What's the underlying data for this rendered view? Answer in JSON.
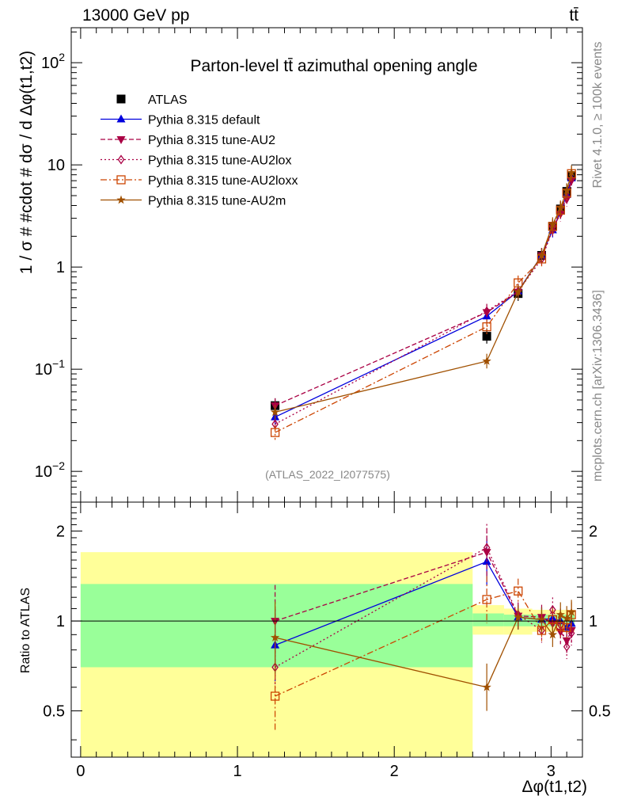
{
  "header": {
    "left": "13000 GeV pp",
    "right": "tt̄"
  },
  "side_labels": {
    "rivet": "Rivet 4.1.0, ≥ 100k events",
    "mcplots": "mcplots.cern.ch [arXiv:1306.3436]"
  },
  "watermark": "(ATLAS_2022_I2077575)",
  "chart_data": [
    {
      "type": "scatter",
      "panel": "main",
      "title": "Parton-level tt̄ azimuthal opening angle",
      "ylabel": "1 / σ # #cdot # dσ / d Δφ(t1,t2)",
      "yscale": "log",
      "ylim": [
        0.005,
        220
      ],
      "xlim": [
        -0.06,
        3.2
      ],
      "xtick_labels": [
        "0",
        "1",
        "2",
        "3"
      ],
      "ytick_labels": [
        "10^-2",
        "10^-1",
        "1",
        "10",
        "10^2"
      ],
      "legend_position": "top-left",
      "x": [
        1.24,
        2.59,
        2.79,
        2.94,
        3.01,
        3.06,
        3.1,
        3.13
      ],
      "series": [
        {
          "name": "ATLAS",
          "color": "#000000",
          "marker": "square-filled",
          "line": "none",
          "values": [
            0.044,
            0.21,
            0.55,
            1.3,
            2.5,
            3.7,
            5.5,
            7.8
          ]
        },
        {
          "name": "Pythia 8.315 default",
          "color": "#0000dd",
          "marker": "triangle-up",
          "line": "solid",
          "values": [
            0.034,
            0.33,
            0.58,
            1.3,
            2.3,
            3.5,
            5.1,
            7.4
          ]
        },
        {
          "name": "Pythia 8.315 tune-AU2",
          "color": "#aa0044",
          "marker": "triangle-down",
          "line": "dashed",
          "values": [
            0.044,
            0.36,
            0.57,
            1.3,
            2.4,
            3.3,
            4.6,
            7.0
          ]
        },
        {
          "name": "Pythia 8.315 tune-AU2lox",
          "color": "#aa0044",
          "marker": "diamond-open",
          "line": "dotted",
          "values": [
            0.029,
            0.37,
            0.58,
            1.2,
            2.3,
            3.4,
            4.8,
            7.2
          ]
        },
        {
          "name": "Pythia 8.315 tune-AU2loxx",
          "color": "#cc4400",
          "marker": "square-open",
          "line": "dashdot",
          "values": [
            0.024,
            0.26,
            0.7,
            1.2,
            2.5,
            3.6,
            5.3,
            8.2
          ]
        },
        {
          "name": "Pythia 8.315 tune-AU2m",
          "color": "#a05000",
          "marker": "star",
          "line": "solid",
          "values": [
            0.038,
            0.12,
            0.57,
            1.3,
            2.6,
            3.8,
            5.6,
            8.4
          ]
        }
      ]
    },
    {
      "type": "scatter",
      "panel": "ratio",
      "ylabel": "Ratio to ATLAS",
      "xlabel": "Δφ(t1,t2)",
      "xlim": [
        -0.06,
        3.2
      ],
      "ylim": [
        0.35,
        2.5
      ],
      "xtick_labels": [
        "0",
        "1",
        "2",
        "3"
      ],
      "ytick_labels": [
        "0.5",
        "1",
        "2"
      ],
      "x": [
        1.24,
        2.59,
        2.79,
        2.94,
        3.01,
        3.06,
        3.1,
        3.13
      ],
      "bands": {
        "x_edges": [
          0,
          2.5,
          2.7,
          2.88,
          2.98,
          3.04,
          3.08,
          3.12,
          3.15
        ],
        "stat_sys": [
          [
            0.7,
            1.33
          ],
          [
            0.96,
            1.06
          ],
          [
            0.96,
            1.05
          ],
          [
            0.96,
            1.05
          ],
          [
            0.96,
            1.05
          ],
          [
            0.96,
            1.05
          ],
          [
            0.96,
            1.05
          ],
          [
            0.96,
            1.05
          ]
        ],
        "total": [
          [
            0.35,
            1.7
          ],
          [
            0.9,
            1.13
          ],
          [
            0.9,
            1.1
          ],
          [
            0.92,
            1.09
          ],
          [
            0.92,
            1.09
          ],
          [
            0.92,
            1.09
          ],
          [
            0.92,
            1.09
          ],
          [
            0.92,
            1.09
          ]
        ]
      },
      "series": [
        {
          "name": "Pythia 8.315 default",
          "values": [
            0.83,
            1.58,
            1.03,
            1.01,
            1.02,
            1.0,
            0.95,
            0.98
          ]
        },
        {
          "name": "Pythia 8.315 tune-AU2",
          "values": [
            1.0,
            1.7,
            1.04,
            1.03,
            0.98,
            0.92,
            0.86,
            0.93
          ]
        },
        {
          "name": "Pythia 8.315 tune-AU2lox",
          "values": [
            0.7,
            1.76,
            1.05,
            0.93,
            1.09,
            0.97,
            0.82,
            0.91
          ]
        },
        {
          "name": "Pythia 8.315 tune-AU2loxx",
          "values": [
            0.56,
            1.18,
            1.26,
            0.93,
            1.01,
            0.96,
            0.95,
            1.05
          ]
        },
        {
          "name": "Pythia 8.315 tune-AU2m",
          "values": [
            0.88,
            0.6,
            1.03,
            1.01,
            0.9,
            1.05,
            1.02,
            1.07
          ]
        }
      ]
    }
  ]
}
